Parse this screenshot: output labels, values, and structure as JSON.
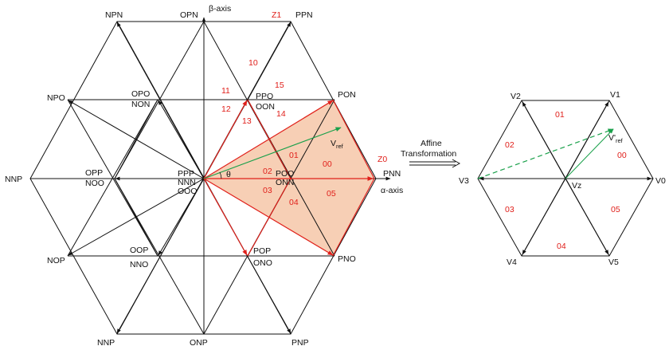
{
  "colors": {
    "line": "#111111",
    "red": "#e0201b",
    "green": "#19a04a",
    "fill": "#f7cfb5"
  },
  "left": {
    "vertices": {
      "npn": "NPN",
      "opn": "OPN",
      "ppn": "PPN",
      "npo": "NPO",
      "opo": "OPO",
      "non": "NON",
      "ppo": "PPO",
      "oon": "OON",
      "pon": "PON",
      "nnp": "NNP",
      "opp": "OPP",
      "noo": "NOO",
      "ppp": "PPP",
      "nnn": "NNN",
      "ooo": "OOO",
      "poo": "POO",
      "onn": "ONN",
      "pnn": "PNN",
      "nop": "NOP",
      "oop": "OOP",
      "nno": "NNO",
      "pop": "POP",
      "ono": "ONO",
      "pno": "PNO",
      "nnp_bottom": "NNP",
      "onp": "ONP",
      "pnp": "PNP"
    },
    "beta_axis": "β-axis",
    "alpha_axis": "α-axis",
    "theta": "θ",
    "vref_main": "V",
    "vref_sub": "ref",
    "zones": {
      "z1": "Z1",
      "z0": "Z0",
      "r10": "10",
      "r11": "11",
      "r15": "15",
      "r12": "12",
      "r14": "14",
      "r13": "13",
      "r01": "01",
      "r00": "00",
      "r02": "02",
      "r03": "03",
      "r05": "05",
      "r04": "04"
    }
  },
  "transform": {
    "line1": "Affine",
    "line2": "Transformation"
  },
  "right": {
    "v0": "V0",
    "v1": "V1",
    "v2": "V2",
    "v3": "V3",
    "v4": "V4",
    "v5": "V5",
    "vz": "Vz",
    "vref_main": "V'",
    "vref_sub": "ref",
    "sectors": {
      "s00": "00",
      "s01": "01",
      "s02": "02",
      "s03": "03",
      "s04": "04",
      "s05": "05"
    }
  }
}
